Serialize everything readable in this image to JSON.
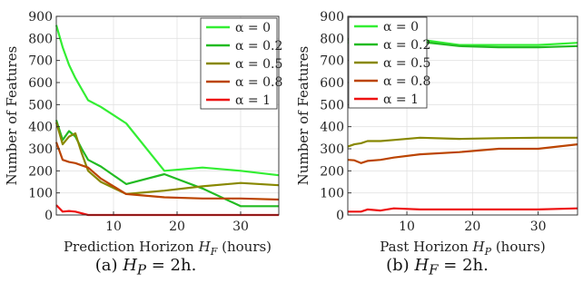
{
  "chart_data": [
    {
      "type": "line",
      "caption": {
        "prefix": "(a)",
        "var": "H",
        "sub": "P",
        "rest": "= 2h."
      },
      "xlabel": {
        "text": "Prediction Horizon",
        "var": "H",
        "sub": "F",
        "unit": "(hours)"
      },
      "ylabel": "Number of Features",
      "xlim": [
        1,
        36
      ],
      "ylim": [
        0,
        900
      ],
      "xticks": [
        10,
        20,
        30
      ],
      "yticks": [
        0,
        100,
        200,
        300,
        400,
        500,
        600,
        700,
        800,
        900
      ],
      "grid": true,
      "legend_position": "top-right",
      "series": [
        {
          "name": "α = 0",
          "color": "#33ee33",
          "x": [
            1,
            2,
            3,
            4,
            6,
            8,
            12,
            18,
            24,
            30,
            36
          ],
          "y": [
            860,
            760,
            680,
            620,
            520,
            490,
            415,
            200,
            215,
            200,
            180
          ]
        },
        {
          "name": "α = 0.2",
          "color": "#22bb22",
          "x": [
            1,
            2,
            3,
            4,
            5,
            6,
            8,
            12,
            18,
            24,
            30,
            36
          ],
          "y": [
            430,
            340,
            380,
            355,
            300,
            250,
            220,
            140,
            185,
            120,
            40,
            40
          ]
        },
        {
          "name": "α = 0.5",
          "color": "#888800",
          "x": [
            1,
            2,
            3,
            4,
            5,
            6,
            8,
            12,
            18,
            24,
            30,
            36
          ],
          "y": [
            420,
            320,
            355,
            370,
            280,
            200,
            150,
            95,
            110,
            130,
            145,
            135
          ]
        },
        {
          "name": "α = 0.8",
          "color": "#bb4400",
          "x": [
            1,
            2,
            3,
            4,
            5,
            6,
            8,
            12,
            18,
            24,
            30,
            36
          ],
          "y": [
            330,
            250,
            240,
            235,
            225,
            215,
            165,
            95,
            80,
            75,
            75,
            70
          ]
        },
        {
          "name": "α = 1",
          "color": "#ee1111",
          "x": [
            1,
            2,
            3,
            4,
            6,
            8,
            12,
            18,
            24,
            30,
            36
          ],
          "y": [
            45,
            15,
            18,
            15,
            0,
            0,
            0,
            0,
            0,
            0,
            0
          ]
        }
      ]
    },
    {
      "type": "line",
      "caption": {
        "prefix": "(b)",
        "var": "H",
        "sub": "F",
        "rest": "= 2h."
      },
      "xlabel": {
        "text": "Past Horizon",
        "var": "H",
        "sub": "P",
        "unit": "(hours)"
      },
      "ylabel": "Number of Features",
      "xlim": [
        1,
        36
      ],
      "ylim": [
        0,
        900
      ],
      "xticks": [
        10,
        20,
        30
      ],
      "yticks": [
        0,
        100,
        200,
        300,
        400,
        500,
        600,
        700,
        800,
        900
      ],
      "grid": true,
      "legend_position": "top-left",
      "series": [
        {
          "name": "α = 0",
          "color": "#33ee33",
          "x": [
            1,
            2,
            3,
            4,
            6,
            8,
            12,
            18,
            24,
            30,
            36
          ],
          "y": [
            780,
            780,
            790,
            790,
            790,
            800,
            795,
            770,
            770,
            770,
            780
          ]
        },
        {
          "name": "α = 0.2",
          "color": "#22bb22",
          "x": [
            1,
            2,
            3,
            4,
            5,
            6,
            8,
            12,
            18,
            24,
            30,
            36
          ],
          "y": [
            790,
            810,
            860,
            885,
            850,
            815,
            805,
            785,
            765,
            760,
            760,
            765
          ]
        },
        {
          "name": "α = 0.5",
          "color": "#888800",
          "x": [
            1,
            2,
            3,
            4,
            6,
            8,
            12,
            18,
            24,
            30,
            36
          ],
          "y": [
            310,
            320,
            325,
            335,
            335,
            340,
            350,
            345,
            348,
            350,
            350
          ]
        },
        {
          "name": "α = 0.8",
          "color": "#bb4400",
          "x": [
            1,
            2,
            3,
            4,
            6,
            8,
            12,
            18,
            24,
            30,
            36
          ],
          "y": [
            250,
            248,
            235,
            245,
            250,
            260,
            275,
            285,
            300,
            300,
            320
          ]
        },
        {
          "name": "α = 1",
          "color": "#ee1111",
          "x": [
            1,
            2,
            3,
            4,
            6,
            8,
            12,
            18,
            24,
            30,
            36
          ],
          "y": [
            15,
            15,
            15,
            25,
            20,
            30,
            25,
            25,
            25,
            25,
            30
          ]
        }
      ]
    }
  ]
}
